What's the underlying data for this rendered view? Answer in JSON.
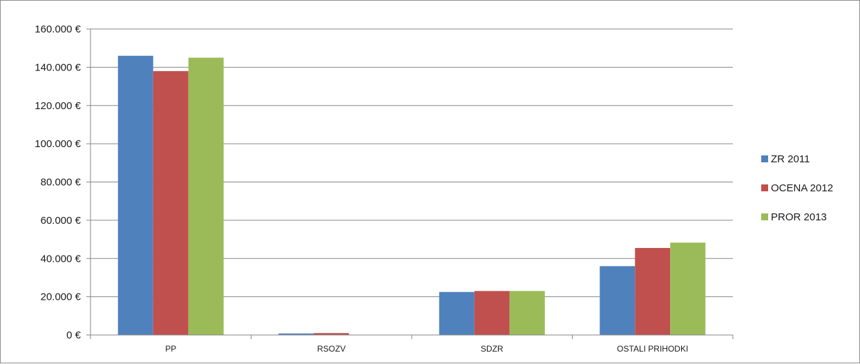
{
  "chart_data": {
    "type": "bar",
    "categories": [
      "PP",
      "RSOZV",
      "SDZR",
      "OSTALI PRIHODKI"
    ],
    "series": [
      {
        "name": "ZR 2011",
        "color": "#4f81bd",
        "values": [
          146000,
          800,
          22500,
          36000
        ]
      },
      {
        "name": "OCENA 2012",
        "color": "#c0504d",
        "values": [
          138000,
          1000,
          23000,
          45500
        ]
      },
      {
        "name": "PROR 2013",
        "color": "#9bbb59",
        "values": [
          145000,
          0,
          23000,
          48300
        ]
      }
    ],
    "ylim": [
      0,
      160000
    ],
    "yticks": [
      0,
      20000,
      40000,
      60000,
      80000,
      100000,
      120000,
      140000,
      160000
    ],
    "ytick_labels": [
      "0 €",
      "20.000 €",
      "40.000 €",
      "60.000 €",
      "80.000 €",
      "100.000 €",
      "120.000 €",
      "140.000 €",
      "160.000 €"
    ],
    "grid": true,
    "legend_position": "right"
  }
}
